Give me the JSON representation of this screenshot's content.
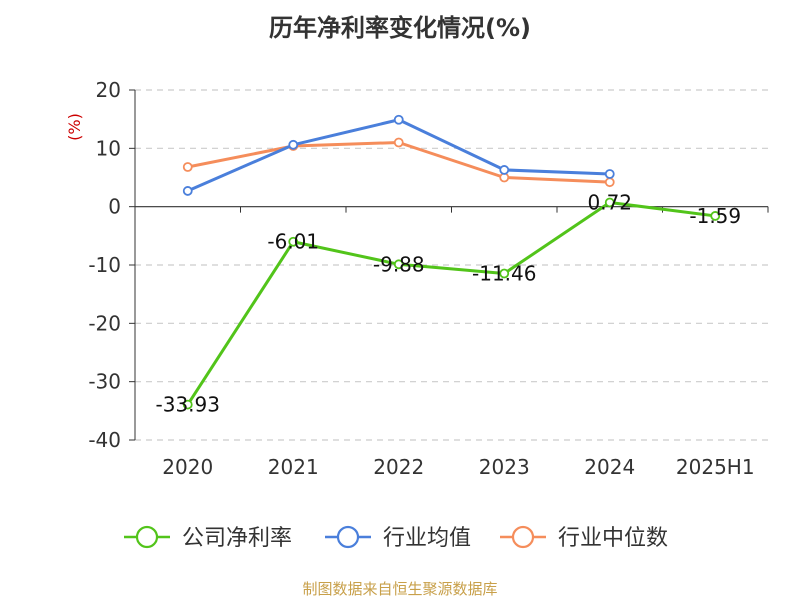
{
  "chart_data": {
    "type": "line",
    "title": "历年净利率变化情况(%)",
    "ylabel": "(%)",
    "xlabel": "",
    "categories": [
      "2020",
      "2021",
      "2022",
      "2023",
      "2024",
      "2025H1"
    ],
    "ylim": [
      -40,
      20
    ],
    "yticks": [
      20,
      10,
      0,
      -10,
      -20,
      -30,
      -40
    ],
    "grid": true,
    "legend_position": "bottom",
    "series": [
      {
        "name": "公司净利率",
        "color": "#52c41a",
        "values": [
          -33.93,
          -6.01,
          -9.88,
          -11.46,
          0.72,
          -1.59
        ],
        "labels": [
          "-33.93",
          "-6.01",
          "-9.88",
          "-11.46",
          "0.72",
          "-1.59"
        ]
      },
      {
        "name": "行业均值",
        "color": "#4a7fdb",
        "values": [
          2.7,
          10.6,
          14.9,
          6.3,
          5.6,
          null
        ]
      },
      {
        "name": "行业中位数",
        "color": "#f58d5b",
        "values": [
          6.8,
          10.4,
          11.0,
          5.0,
          4.2,
          null
        ]
      }
    ]
  },
  "source_note": "制图数据来自恒生聚源数据库"
}
